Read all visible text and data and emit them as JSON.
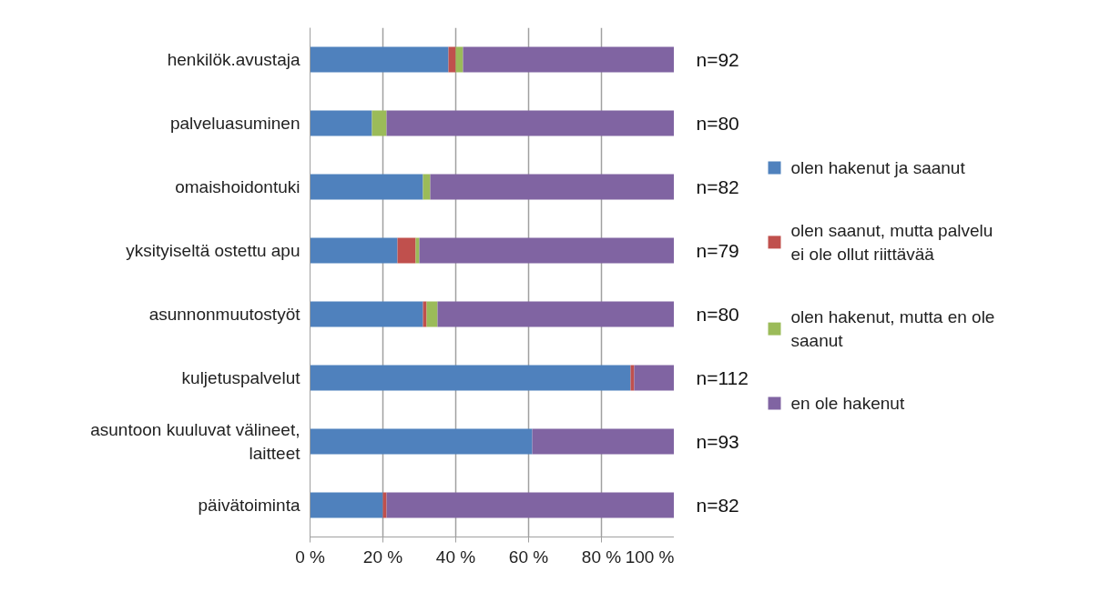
{
  "chart_data": {
    "type": "bar",
    "orientation": "horizontal",
    "stacked": true,
    "categories": [
      "henkilök.avustaja",
      "palveluasuminen",
      "omaishoidontuki",
      "yksityiseltä ostettu apu",
      "asunnonmuutostyöt",
      "kuljetuspalvelut",
      "asuntoon kuuluvat välineet, laitteet",
      "päivätoiminta"
    ],
    "series": [
      {
        "name": "olen hakenut ja saanut",
        "color": "#4f81bd",
        "values": [
          38,
          17,
          31,
          24,
          31,
          88,
          61,
          20
        ]
      },
      {
        "name": "olen saanut, mutta palvelu ei ole ollut riittävää",
        "color": "#c0504d",
        "values": [
          2,
          0,
          0,
          5,
          1,
          1,
          0,
          1
        ]
      },
      {
        "name": "olen hakenut, mutta en ole saanut",
        "color": "#9bbb59",
        "values": [
          2,
          4,
          2,
          1,
          3,
          0,
          0,
          0
        ]
      },
      {
        "name": "en ole hakenut",
        "color": "#8064a2",
        "values": [
          58,
          79,
          67,
          70,
          65,
          11,
          39,
          79
        ]
      }
    ],
    "xlim": [
      0,
      100
    ],
    "xticks": [
      {
        "value": 0,
        "label": "0 %"
      },
      {
        "value": 20,
        "label": "20 %"
      },
      {
        "value": 40,
        "label": "40 %"
      },
      {
        "value": 60,
        "label": "60 %"
      },
      {
        "value": 80,
        "label": "80 %"
      },
      {
        "value": 100,
        "label": "100 %"
      }
    ],
    "annotations": [
      "n=92",
      "n=80",
      "n=82",
      "n=79",
      "n=80",
      "n=112",
      "n=93",
      "n=82"
    ],
    "grid": "x",
    "legend": "right"
  }
}
